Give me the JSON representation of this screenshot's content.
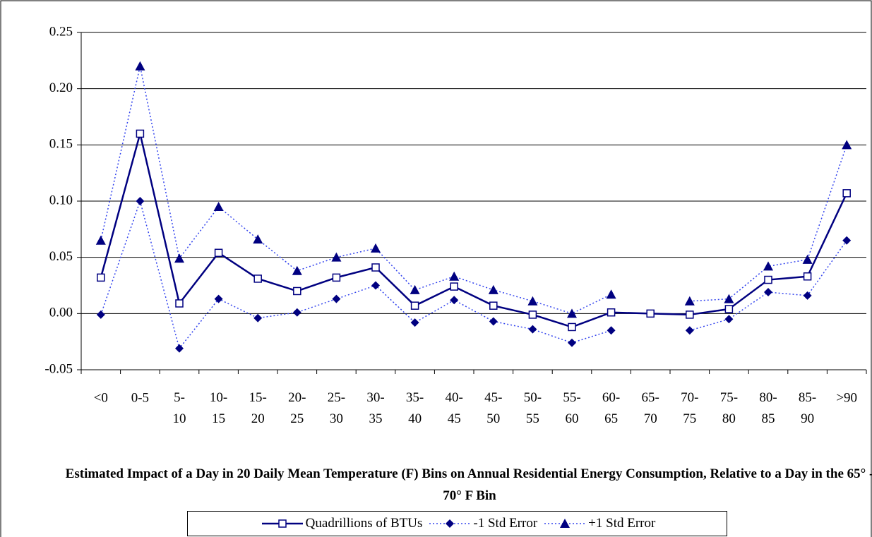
{
  "chart_data": {
    "type": "line",
    "xlabel": "Estimated Impact of a Day in 20 Daily Mean Temperature (F) Bins on Annual Residential Energy Consumption, Relative to a Day in the 65° - 70° F Bin",
    "categories": [
      "<0",
      "0-5",
      "5-10",
      "10-15",
      "15-20",
      "20-25",
      "25-30",
      "30-35",
      "35-40",
      "40-45",
      "45-50",
      "50-55",
      "55-60",
      "60-65",
      "65-70",
      "70-75",
      "75-80",
      "80-85",
      "85-90",
      ">90"
    ],
    "series": [
      {
        "name": "Quadrillions of BTUs",
        "color": "#000080",
        "marker": "square",
        "dashed": false,
        "values": [
          0.032,
          0.16,
          0.009,
          0.054,
          0.031,
          0.02,
          0.032,
          0.041,
          0.007,
          0.024,
          0.007,
          -0.001,
          -0.012,
          0.001,
          0.0,
          -0.001,
          0.004,
          0.03,
          0.033,
          0.107
        ]
      },
      {
        "name": "-1 Std Error",
        "color": "#000080",
        "marker": "diamond",
        "dashed": true,
        "values": [
          -0.001,
          0.1,
          -0.031,
          0.013,
          -0.004,
          0.001,
          0.013,
          0.025,
          -0.008,
          0.012,
          -0.007,
          -0.014,
          -0.026,
          -0.015,
          null,
          -0.015,
          -0.005,
          0.019,
          0.016,
          0.065
        ]
      },
      {
        "name": "+1 Std Error",
        "color": "#000080",
        "marker": "triangle",
        "dashed": true,
        "values": [
          0.065,
          0.22,
          0.049,
          0.095,
          0.066,
          0.038,
          0.05,
          0.058,
          0.021,
          0.033,
          0.021,
          0.011,
          0.0,
          0.017,
          null,
          0.011,
          0.013,
          0.042,
          0.048,
          0.15
        ]
      }
    ],
    "ylim": [
      -0.05,
      0.25
    ],
    "yticks": [
      {
        "value": -0.05,
        "label": "-0.05"
      },
      {
        "value": 0,
        "label": "0.00"
      },
      {
        "value": 0.05,
        "label": "0.05"
      },
      {
        "value": 0.1,
        "label": "0.10"
      },
      {
        "value": 0.15,
        "label": "0.15"
      },
      {
        "value": 0.2,
        "label": "0.20"
      },
      {
        "value": 0.25,
        "label": "0.25"
      }
    ],
    "grid": true,
    "legend": "bottom"
  }
}
